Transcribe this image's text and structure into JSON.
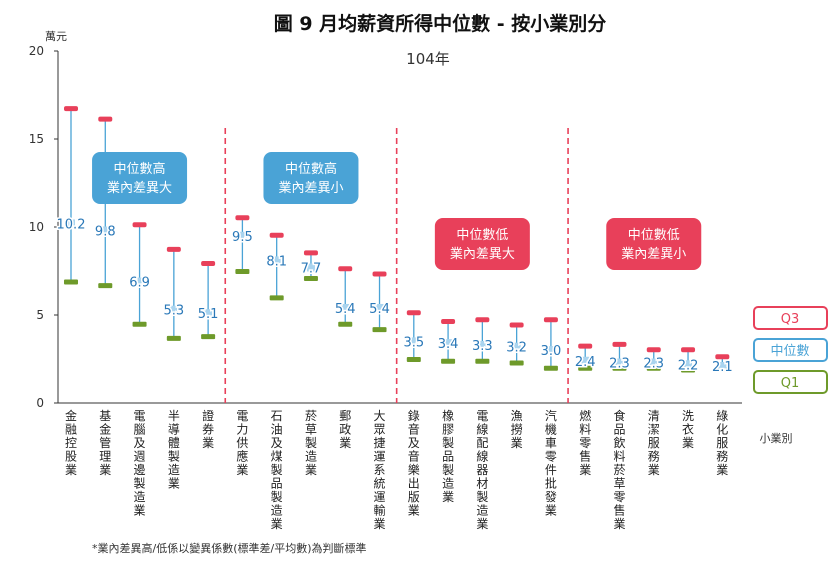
{
  "chart_data": {
    "type": "range",
    "title": "圖 9  月均薪資所得中位數 - 按小業別分",
    "subtitle": "104年",
    "ylabel": "萬元",
    "xlabel": "小業別",
    "ylim": [
      0,
      20
    ],
    "yticks": [
      0,
      5,
      10,
      15,
      20
    ],
    "grid": false,
    "legend": [
      "Q3",
      "中位數",
      "Q1"
    ],
    "legend_position": "right",
    "footnote": "*業內差異高/低係以變異係數(標準差/平均數)為判斷標準",
    "colors": {
      "q3": "#e8405a",
      "median": "#4aa3d6",
      "q1": "#6e9a2a",
      "divider": "#e8405a"
    },
    "groups": [
      {
        "label_line1": "中位數高",
        "label_line2": "業內差異大",
        "color": "#4aa3d6"
      },
      {
        "label_line1": "中位數高",
        "label_line2": "業內差異小",
        "color": "#4aa3d6"
      },
      {
        "label_line1": "中位數低",
        "label_line2": "業內差異大",
        "color": "#e8405a"
      },
      {
        "label_line1": "中位數低",
        "label_line2": "業內差異小",
        "color": "#e8405a"
      }
    ],
    "categories": [
      {
        "name": "金融控股業",
        "q1": 6.9,
        "median": 10.2,
        "q3": 16.7,
        "median_label": "10.2",
        "group": 0
      },
      {
        "name": "基金管理業",
        "q1": 6.7,
        "median": 9.8,
        "q3": 16.1,
        "median_label": "9.8",
        "group": 0
      },
      {
        "name": "電腦及週邊製造業",
        "q1": 4.5,
        "median": 6.9,
        "q3": 10.1,
        "median_label": "6.9",
        "group": 0
      },
      {
        "name": "半導體製造業",
        "q1": 3.7,
        "median": 5.3,
        "q3": 8.7,
        "median_label": "5.3",
        "group": 0
      },
      {
        "name": "證券業",
        "q1": 3.8,
        "median": 5.1,
        "q3": 7.9,
        "median_label": "5.1",
        "group": 0
      },
      {
        "name": "電力供應業",
        "q1": 7.5,
        "median": 9.5,
        "q3": 10.5,
        "median_label": "9.5",
        "group": 1
      },
      {
        "name": "石油及煤製品製造業",
        "q1": 6.0,
        "median": 8.1,
        "q3": 9.5,
        "median_label": "8.1",
        "group": 1
      },
      {
        "name": "菸草製造業",
        "q1": 7.1,
        "median": 7.7,
        "q3": 8.5,
        "median_label": "7.7",
        "group": 1
      },
      {
        "name": "郵政業",
        "q1": 4.5,
        "median": 5.4,
        "q3": 7.6,
        "median_label": "5.4",
        "group": 1
      },
      {
        "name": "大眾捷運系統運輸業",
        "q1": 4.2,
        "median": 5.4,
        "q3": 7.3,
        "median_label": "5.4",
        "group": 1
      },
      {
        "name": "錄音及音樂出版業",
        "q1": 2.5,
        "median": 3.5,
        "q3": 5.1,
        "median_label": "3.5",
        "group": 2
      },
      {
        "name": "橡膠製品製造業",
        "q1": 2.4,
        "median": 3.4,
        "q3": 4.6,
        "median_label": "3.4",
        "group": 2
      },
      {
        "name": "電線配線器材製造業",
        "q1": 2.4,
        "median": 3.3,
        "q3": 4.7,
        "median_label": "3.3",
        "group": 2
      },
      {
        "name": "漁撈業",
        "q1": 2.3,
        "median": 3.2,
        "q3": 4.4,
        "median_label": "3.2",
        "group": 2
      },
      {
        "name": "汽機車零件批發業",
        "q1": 2.0,
        "median": 3.0,
        "q3": 4.7,
        "median_label": "3.0",
        "group": 2
      },
      {
        "name": "燃料零售業",
        "q1": 2.0,
        "median": 2.4,
        "q3": 3.2,
        "median_label": "2.4",
        "group": 3
      },
      {
        "name": "食品飲料菸草零售業",
        "q1": 2.0,
        "median": 2.3,
        "q3": 3.3,
        "median_label": "2.3",
        "group": 3
      },
      {
        "name": "清潔服務業",
        "q1": 2.0,
        "median": 2.3,
        "q3": 3.0,
        "median_label": "2.3",
        "group": 3
      },
      {
        "name": "洗衣業",
        "q1": 1.9,
        "median": 2.2,
        "q3": 3.0,
        "median_label": "2.2",
        "group": 3
      },
      {
        "name": "綠化服務業",
        "q1": 1.9,
        "median": 2.1,
        "q3": 2.6,
        "median_label": "2.1",
        "group": 3
      }
    ]
  }
}
